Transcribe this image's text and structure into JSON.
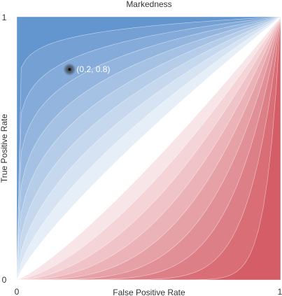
{
  "chart_data": {
    "type": "heatmap",
    "title": "Markedness",
    "xlabel": "False Positive Rate",
    "ylabel": "True Positive Rate",
    "xlim": [
      0,
      1
    ],
    "ylim": [
      0,
      1
    ],
    "x_ticks": [
      "0",
      "1"
    ],
    "y_ticks": [
      "0",
      "1"
    ],
    "grid": false,
    "levels": [
      -0.9,
      -0.8,
      -0.7,
      -0.6,
      -0.5,
      -0.4,
      -0.3,
      -0.2,
      -0.1,
      0,
      0.1,
      0.2,
      0.3,
      0.4,
      0.5,
      0.6,
      0.7,
      0.8,
      0.9
    ],
    "colors": {
      "positive": "#5b8fcc",
      "negative": "#d2545f",
      "neutral": "#ffffff"
    },
    "points": [
      {
        "x": 0.2,
        "y": 0.8,
        "label": "(0.2, 0.8)"
      }
    ]
  }
}
